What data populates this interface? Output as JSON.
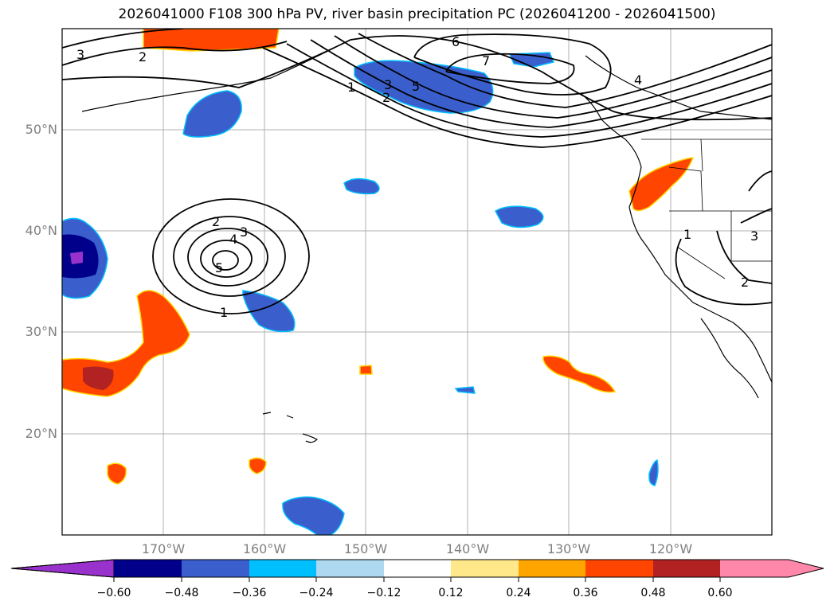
{
  "title": "2026041000 F108 300 hPa PV, river basin precipitation PC (2026041200 - 2026041500)",
  "lat_labels": [
    "50°N",
    "40°N",
    "30°N",
    "20°N"
  ],
  "lon_labels": [
    "170°W",
    "160°W",
    "150°W",
    "140°W",
    "130°W",
    "120°W"
  ],
  "pv_contour_labels": [
    "3",
    "2",
    "1",
    "2",
    "3",
    "5",
    "6",
    "7",
    "4",
    "2",
    "3",
    "4",
    "5",
    "1",
    "1",
    "2",
    "3"
  ],
  "colorbar": {
    "ticks": [
      "−0.60",
      "−0.48",
      "−0.36",
      "−0.24",
      "−0.12",
      "0.12",
      "0.24",
      "0.36",
      "0.48",
      "0.60"
    ],
    "colors": [
      "#9932cc",
      "#00008b",
      "#3a5fcd",
      "#00bfff",
      "#add8f0",
      "#ffffff",
      "#ffe88a",
      "#ffa500",
      "#ff4500",
      "#b22222",
      "#ff88aa"
    ]
  }
}
